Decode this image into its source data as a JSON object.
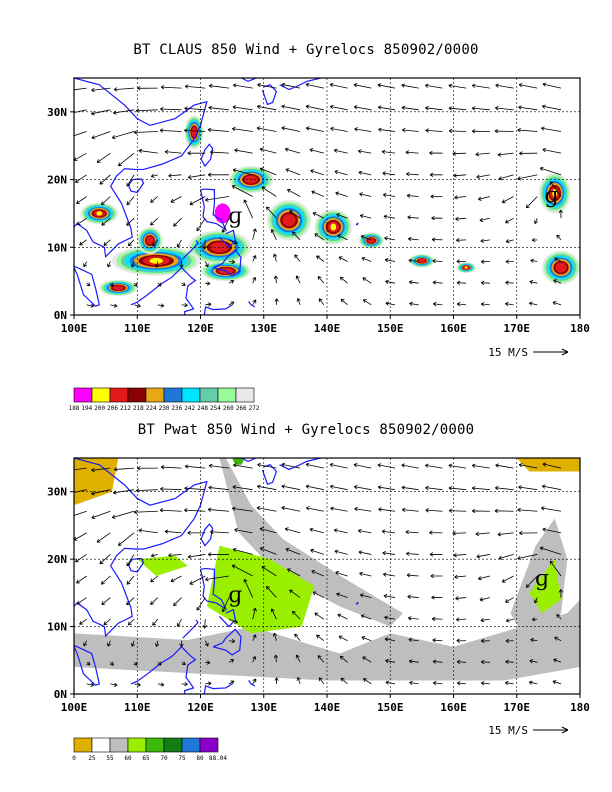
{
  "panels": [
    {
      "title": "BT CLAUS 850 Wind + Gyrelocs 850902/0000",
      "variable": "CLAUS brightness temperature",
      "x_ticks": [
        "100E",
        "110E",
        "120E",
        "130E",
        "140E",
        "150E",
        "160E",
        "170E",
        "180"
      ],
      "y_ticks": [
        "0N",
        "10N",
        "20N",
        "30N"
      ],
      "wind_scale_label": "15 M/S",
      "colorbar_labels": [
        "188",
        "194",
        "200",
        "206",
        "212",
        "218",
        "224",
        "230",
        "236",
        "242",
        "248",
        "254",
        "260",
        "266",
        "272"
      ],
      "colorbar_colors": [
        "#ff00ff",
        "#ffff00",
        "#e31a1c",
        "#8b0000",
        "#e6a817",
        "#1f78d8",
        "#00e5ff",
        "#66cdaa",
        "#98fb98",
        "#e8e8e8"
      ],
      "gyre_symbols": [
        {
          "lon": 125.5,
          "lat": 14.5
        },
        {
          "lon": 175.5,
          "lat": 17.5
        }
      ]
    },
    {
      "title": "BT Pwat 850 Wind + Gyrelocs 850902/0000",
      "variable": "Precipitable water",
      "x_ticks": [
        "100E",
        "110E",
        "120E",
        "130E",
        "140E",
        "150E",
        "160E",
        "170E",
        "180"
      ],
      "y_ticks": [
        "0N",
        "10N",
        "20N",
        "30N"
      ],
      "wind_scale_label": "15 M/S",
      "colorbar_labels": [
        "0",
        "25",
        "55",
        "60",
        "65",
        "70",
        "75",
        "80",
        "88.04"
      ],
      "colorbar_colors": [
        "#e0b000",
        "#ffffff",
        "#bebebe",
        "#9aef00",
        "#3cb80a",
        "#137f13",
        "#1f78d8",
        "#8b00c9"
      ],
      "gyre_symbols": [
        {
          "lon": 125.5,
          "lat": 14.5
        },
        {
          "lon": 174.0,
          "lat": 17.0
        }
      ]
    }
  ]
}
